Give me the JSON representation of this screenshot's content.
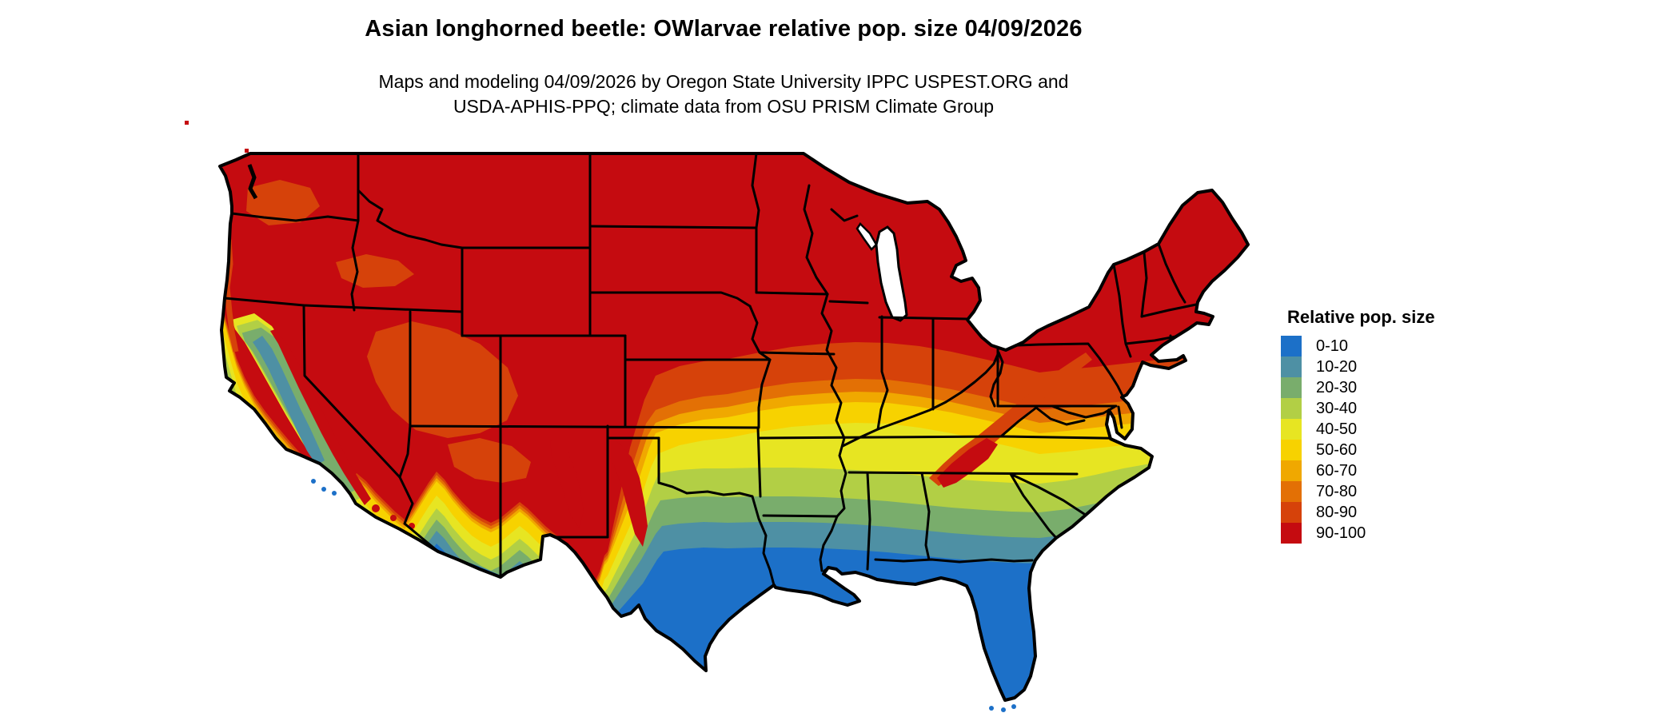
{
  "title": "Asian longhorned beetle: OWlarvae relative pop. size 04/09/2026",
  "subtitle_line1": "Maps and modeling 04/09/2026 by Oregon State University IPPC USPEST.ORG and",
  "subtitle_line2": "USDA-APHIS-PPQ; climate data from OSU PRISM Climate Group",
  "legend": {
    "title": "Relative pop. size",
    "entries": [
      {
        "label": "0-10",
        "color": "#1C70C8"
      },
      {
        "label": "10-20",
        "color": "#4E90A4"
      },
      {
        "label": "20-30",
        "color": "#79AD6C"
      },
      {
        "label": "30-40",
        "color": "#B2CF45"
      },
      {
        "label": "40-50",
        "color": "#E7E522"
      },
      {
        "label": "50-60",
        "color": "#F7D200"
      },
      {
        "label": "60-70",
        "color": "#F0A800"
      },
      {
        "label": "70-80",
        "color": "#E37005"
      },
      {
        "label": "80-90",
        "color": "#D6420A"
      },
      {
        "label": "90-100",
        "color": "#C50B10"
      }
    ]
  },
  "map": {
    "border_color": "#000000",
    "background": "#ffffff"
  }
}
